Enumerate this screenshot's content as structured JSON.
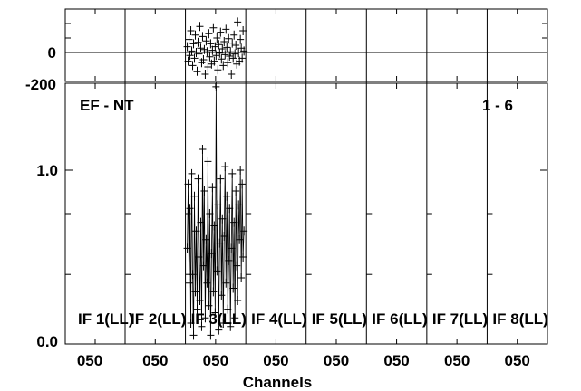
{
  "chart_data": {
    "type": "scatter",
    "xlabel": "Channels",
    "baseline_label": "EF - NT",
    "plot_id_label": "1 - 6",
    "phase_panel": {
      "ylim": [
        -200,
        300
      ],
      "ticks": [
        "0",
        "-200"
      ],
      "tick_values": [
        0,
        -200
      ],
      "zero_line": 0
    },
    "amplitude_panel": {
      "ylim": [
        0.0,
        1.5
      ],
      "ticks": [
        "1.0",
        "0.0"
      ],
      "tick_values": [
        1.0,
        0.0
      ]
    },
    "if_panels": [
      {
        "label": "IF 1(LL)",
        "channel_tick": "050",
        "has_data": false
      },
      {
        "label": "IF 2(LL)",
        "channel_tick": "050",
        "has_data": false
      },
      {
        "label": "IF 3(LL)",
        "channel_tick": "050",
        "has_data": true
      },
      {
        "label": "IF 4(LL)",
        "channel_tick": "050",
        "has_data": false
      },
      {
        "label": "IF 5(LL)",
        "channel_tick": "050",
        "has_data": false
      },
      {
        "label": "IF 6(LL)",
        "channel_tick": "050",
        "has_data": false
      },
      {
        "label": "IF 7(LL)",
        "channel_tick": "050",
        "has_data": false
      },
      {
        "label": "IF 8(LL)",
        "channel_tick": "050",
        "has_data": false
      }
    ],
    "channels": [
      1,
      2,
      3,
      4,
      5,
      6,
      7,
      8,
      9,
      10,
      11,
      12,
      13,
      14,
      15,
      16,
      17,
      18,
      19,
      20,
      21,
      22,
      23,
      24,
      25,
      26,
      27,
      28,
      29,
      30,
      31,
      32,
      33,
      34,
      35,
      36,
      37,
      38,
      39,
      40,
      41,
      42,
      43,
      44,
      45,
      46,
      47,
      48,
      49,
      50,
      51,
      52,
      53,
      54,
      55,
      56,
      57,
      58,
      59,
      60,
      61,
      62,
      63,
      64
    ],
    "series": [
      {
        "if": 3,
        "amplitude": [
          0.55,
          0.92,
          0.35,
          0.78,
          0.12,
          0.98,
          0.4,
          0.05,
          0.85,
          0.3,
          0.65,
          0.2,
          0.95,
          0.5,
          0.25,
          0.7,
          0.1,
          1.12,
          0.45,
          0.88,
          0.15,
          0.6,
          0.35,
          1.05,
          0.22,
          0.75,
          0.05,
          0.52,
          0.9,
          0.3,
          0.68,
          0.18,
          1.48,
          0.42,
          0.8,
          0.08,
          0.58,
          0.95,
          0.28,
          0.72,
          0.12,
          0.62,
          1.02,
          0.35,
          0.85,
          0.2,
          0.48,
          0.78,
          0.1,
          0.55,
          0.98,
          0.32,
          0.7,
          0.15,
          0.88,
          0.45,
          0.25,
          0.8,
          0.6,
          1.0,
          0.38,
          0.92,
          0.5,
          0.65
        ],
        "phase": [
          40,
          -60,
          90,
          -20,
          150,
          10,
          -90,
          60,
          -40,
          120,
          0,
          -130,
          70,
          -10,
          180,
          30,
          -70,
          110,
          -50,
          20,
          -150,
          80,
          5,
          -100,
          130,
          -30,
          60,
          -80,
          15,
          170,
          -60,
          40,
          -20,
          100,
          -120,
          55,
          -5,
          140,
          -45,
          25,
          -90,
          75,
          -15,
          160,
          35,
          -70,
          95,
          -25,
          5,
          -150,
          65,
          -40,
          120,
          -10,
          50,
          -80,
          210,
          0,
          -60,
          90,
          30,
          -40,
          150,
          10
        ]
      }
    ]
  }
}
